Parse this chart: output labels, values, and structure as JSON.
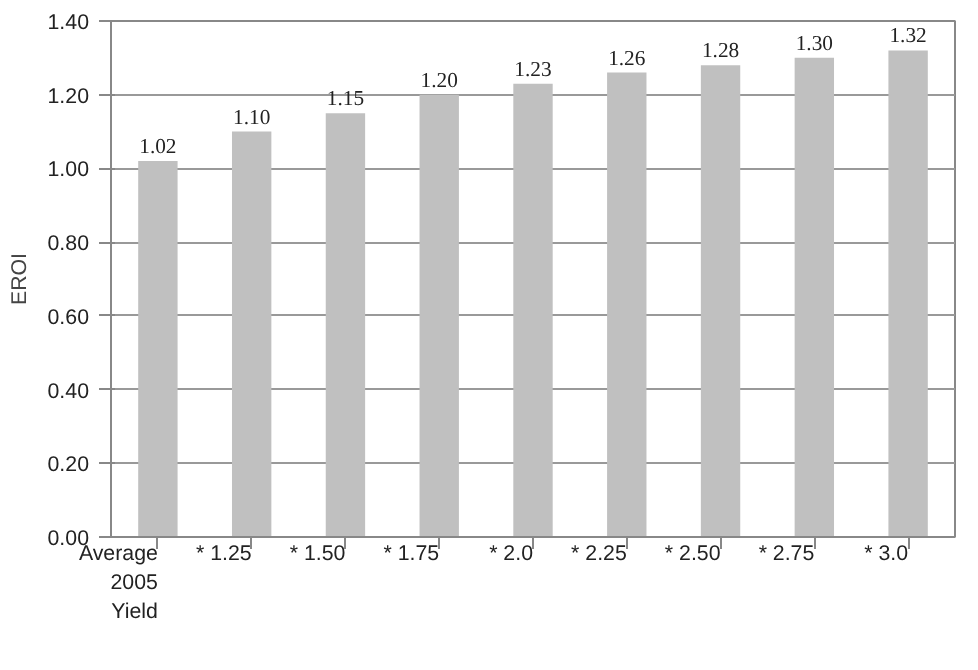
{
  "chart_data": {
    "type": "bar",
    "ylabel": "EROI",
    "categories": [
      "Average 2005 Yield",
      "* 1.25",
      "* 1.50",
      "* 1.75",
      "* 2.0",
      "* 2.25",
      "* 2.50",
      "* 2.75",
      "* 3.0"
    ],
    "values": [
      1.02,
      1.1,
      1.15,
      1.2,
      1.23,
      1.26,
      1.28,
      1.3,
      1.32
    ],
    "value_labels": [
      "1.02",
      "1.10",
      "1.15",
      "1.20",
      "1.23",
      "1.26",
      "1.28",
      "1.30",
      "1.32"
    ],
    "color": "#c0c0c0",
    "ylim": [
      0,
      1.4
    ],
    "yticks": [
      {
        "value": 0,
        "label": "0.00"
      },
      {
        "value": 0.2,
        "label": "0.20"
      },
      {
        "value": 0.4,
        "label": "0.40"
      },
      {
        "value": 0.6,
        "label": "0.60"
      },
      {
        "value": 0.8,
        "label": "0.80"
      },
      {
        "value": 1.0,
        "label": "1.00"
      },
      {
        "value": 1.2,
        "label": "1.20"
      },
      {
        "value": 1.4,
        "label": "1.40"
      }
    ],
    "grid": "y"
  }
}
